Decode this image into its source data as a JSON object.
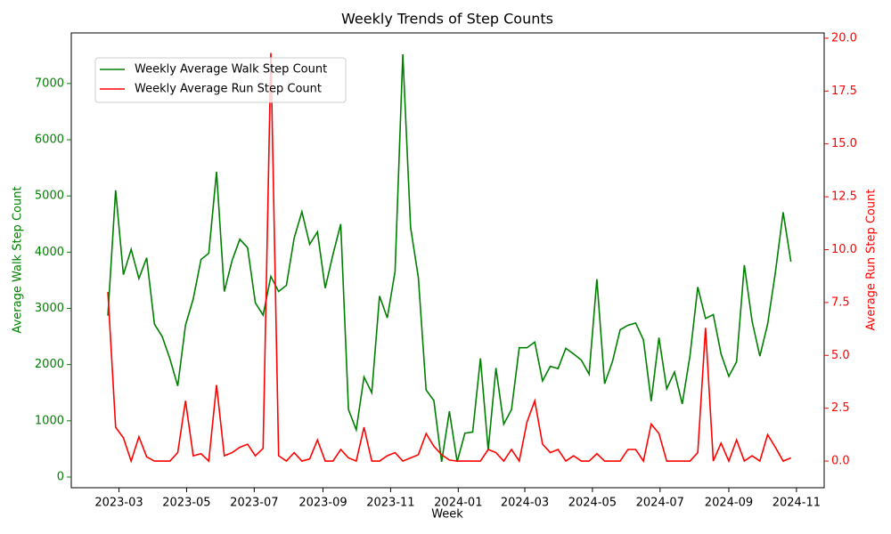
{
  "chart_data": {
    "type": "line",
    "title": "Weekly Trends of Step Counts",
    "xlabel": "Week",
    "ylabel": "Average Walk Step Count",
    "y2label": "Average Run Step Count",
    "x": [
      "2023-02-19",
      "2023-02-26",
      "2023-03-05",
      "2023-03-12",
      "2023-03-19",
      "2023-03-26",
      "2023-04-02",
      "2023-04-09",
      "2023-04-16",
      "2023-04-23",
      "2023-04-30",
      "2023-05-07",
      "2023-05-14",
      "2023-05-21",
      "2023-05-28",
      "2023-06-04",
      "2023-06-11",
      "2023-06-18",
      "2023-06-25",
      "2023-07-02",
      "2023-07-09",
      "2023-07-16",
      "2023-07-23",
      "2023-07-30",
      "2023-08-06",
      "2023-08-13",
      "2023-08-20",
      "2023-08-27",
      "2023-09-03",
      "2023-09-10",
      "2023-09-17",
      "2023-09-24",
      "2023-10-01",
      "2023-10-08",
      "2023-10-15",
      "2023-10-22",
      "2023-10-29",
      "2023-11-05",
      "2023-11-12",
      "2023-11-19",
      "2023-11-26",
      "2023-12-03",
      "2023-12-10",
      "2023-12-17",
      "2023-12-24",
      "2023-12-31",
      "2024-01-07",
      "2024-01-14",
      "2024-01-21",
      "2024-01-28",
      "2024-02-04",
      "2024-02-11",
      "2024-02-18",
      "2024-02-25",
      "2024-03-03",
      "2024-03-10",
      "2024-03-17",
      "2024-03-24",
      "2024-03-31",
      "2024-04-07",
      "2024-04-14",
      "2024-04-21",
      "2024-04-28",
      "2024-05-05",
      "2024-05-12",
      "2024-05-19",
      "2024-05-26",
      "2024-06-02",
      "2024-06-09",
      "2024-06-16",
      "2024-06-23",
      "2024-06-30",
      "2024-07-07",
      "2024-07-14",
      "2024-07-21",
      "2024-07-28",
      "2024-08-04",
      "2024-08-11",
      "2024-08-18",
      "2024-08-25",
      "2024-09-01",
      "2024-09-08",
      "2024-09-15",
      "2024-09-22",
      "2024-09-29",
      "2024-10-06",
      "2024-10-13",
      "2024-10-20",
      "2024-10-27"
    ],
    "series": [
      {
        "name": "Weekly Average Walk Step Count",
        "color": "#008000",
        "axis": "y",
        "values": [
          2870,
          5100,
          3600,
          4050,
          3530,
          3900,
          2720,
          2500,
          2100,
          1620,
          2700,
          3170,
          3870,
          3980,
          5430,
          3300,
          3850,
          4230,
          4080,
          3100,
          2880,
          3570,
          3300,
          3410,
          4250,
          4720,
          4140,
          4360,
          3360,
          3960,
          4500,
          1200,
          840,
          1780,
          1500,
          3220,
          2830,
          3660,
          7520,
          4440,
          3550,
          1550,
          1360,
          270,
          1170,
          270,
          780,
          800,
          2110,
          480,
          1940,
          940,
          1200,
          2300,
          2300,
          2400,
          1710,
          1970,
          1930,
          2290,
          2190,
          2080,
          1830,
          3520,
          1660,
          2050,
          2620,
          2700,
          2740,
          2440,
          1350,
          2480,
          1570,
          1870,
          1300,
          2160,
          3380,
          2820,
          2890,
          2190,
          1790,
          2050,
          3770,
          2770,
          2150,
          2720,
          3640,
          4710,
          3830
        ]
      },
      {
        "name": "Weekly Average Run Step Count",
        "color": "#ff0000",
        "axis": "y2",
        "values": [
          8.0,
          1.6,
          1.1,
          0.0,
          1.15,
          0.2,
          0.0,
          0.0,
          0.0,
          0.4,
          2.85,
          0.25,
          0.35,
          0.0,
          3.6,
          0.25,
          0.4,
          0.65,
          0.8,
          0.25,
          0.6,
          19.3,
          0.25,
          0.0,
          0.4,
          0.0,
          0.1,
          1.0,
          0.0,
          0.0,
          0.55,
          0.15,
          0.0,
          1.6,
          0.0,
          0.0,
          0.25,
          0.4,
          0.0,
          0.15,
          0.3,
          1.3,
          0.7,
          0.3,
          0.05,
          0.0,
          0.0,
          0.0,
          0.0,
          0.55,
          0.4,
          0.0,
          0.55,
          0.0,
          1.85,
          2.85,
          0.8,
          0.4,
          0.55,
          0.0,
          0.25,
          0.0,
          0.0,
          0.35,
          0.0,
          0.0,
          0.0,
          0.55,
          0.55,
          0.0,
          1.75,
          1.3,
          0.0,
          0.0,
          0.0,
          0.0,
          0.4,
          6.3,
          0.0,
          0.85,
          0.0,
          1.0,
          0.0,
          0.25,
          0.0,
          1.25,
          0.65,
          0.0,
          0.15
        ]
      }
    ],
    "xlim": [
      "2023-01-17",
      "2024-11-26"
    ],
    "xticks": [
      {
        "value": "2023-03-01",
        "label": "2023-03"
      },
      {
        "value": "2023-05-01",
        "label": "2023-05"
      },
      {
        "value": "2023-07-01",
        "label": "2023-07"
      },
      {
        "value": "2023-09-01",
        "label": "2023-09"
      },
      {
        "value": "2023-11-01",
        "label": "2023-11"
      },
      {
        "value": "2024-01-01",
        "label": "2024-01"
      },
      {
        "value": "2024-03-01",
        "label": "2024-03"
      },
      {
        "value": "2024-05-01",
        "label": "2024-05"
      },
      {
        "value": "2024-07-01",
        "label": "2024-07"
      },
      {
        "value": "2024-09-01",
        "label": "2024-09"
      },
      {
        "value": "2024-11-01",
        "label": "2024-11"
      }
    ],
    "ylim": [
      -190,
      7900
    ],
    "yticks": [
      0,
      1000,
      2000,
      3000,
      4000,
      5000,
      6000,
      7000
    ],
    "y2lim": [
      -1.26,
      20.25
    ],
    "y2ticks": [
      {
        "value": 0,
        "label": "0.0"
      },
      {
        "value": 2.5,
        "label": "2.5"
      },
      {
        "value": 5,
        "label": "5.0"
      },
      {
        "value": 7.5,
        "label": "7.5"
      },
      {
        "value": 10,
        "label": "10.0"
      },
      {
        "value": 12.5,
        "label": "12.5"
      },
      {
        "value": 15,
        "label": "15.0"
      },
      {
        "value": 17.5,
        "label": "17.5"
      },
      {
        "value": 20,
        "label": "20.0"
      }
    ],
    "legend": "upper left",
    "grid": false
  }
}
